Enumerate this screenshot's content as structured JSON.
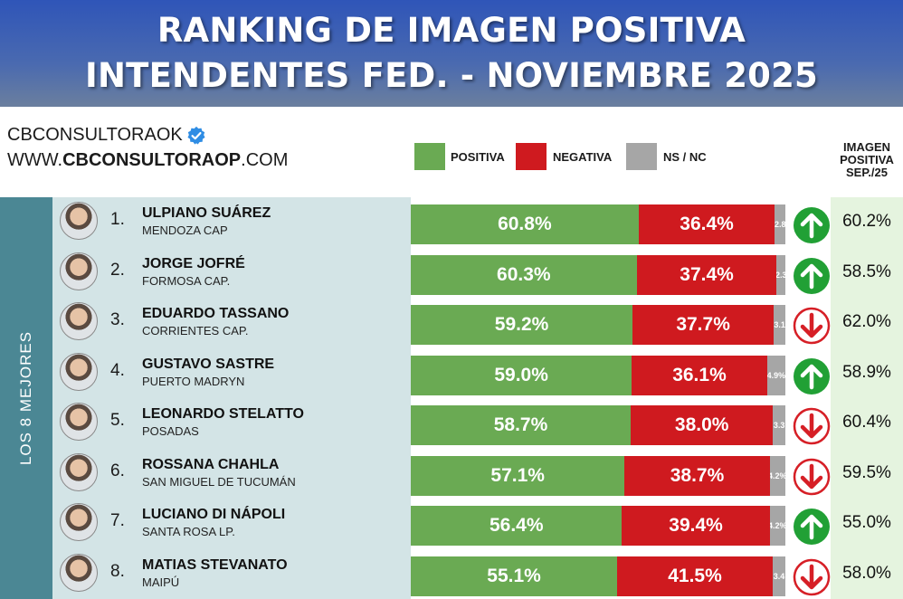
{
  "header": {
    "title_line1": "RANKING DE IMAGEN POSITIVA",
    "title_line2": "INTENDENTES FED. - NOVIEMBRE 2025"
  },
  "brand": {
    "handle": "CBCONSULTORAOK",
    "site_prefix": "WWW.",
    "site_bold": "CBCONSULTORAOP",
    "site_suffix": ".COM"
  },
  "legend": [
    {
      "label": "POSITIVA",
      "color": "#6aaa53"
    },
    {
      "label": "NEGATIVA",
      "color": "#cf1a1f"
    },
    {
      "label": "NS / NC",
      "color": "#a6a6a6"
    }
  ],
  "prev_header": [
    "IMAGEN",
    "POSITIVA",
    "SEP./25"
  ],
  "side_label": "LOS 8 MEJORES",
  "colors": {
    "up_arrow": "#21a035",
    "down_arrow": "#d61f26"
  },
  "chart_data": {
    "type": "bar",
    "stacked": true,
    "orientation": "horizontal",
    "title": "RANKING DE IMAGEN POSITIVA INTENDENTES FED. - NOVIEMBRE 2025",
    "categories": [
      "ULPIANO SUÁREZ",
      "JORGE JOFRÉ",
      "EDUARDO TASSANO",
      "GUSTAVO SASTRE",
      "LEONARDO STELATTO",
      "ROSSANA CHAHLA",
      "LUCIANO DI NÁPOLI",
      "MATIAS STEVANATO"
    ],
    "series": [
      {
        "name": "POSITIVA",
        "values": [
          60.8,
          60.3,
          59.2,
          59.0,
          58.7,
          57.1,
          56.4,
          55.1
        ]
      },
      {
        "name": "NEGATIVA",
        "values": [
          36.4,
          37.4,
          37.7,
          36.1,
          38.0,
          38.7,
          39.4,
          41.5
        ]
      },
      {
        "name": "NS / NC",
        "values": [
          2.8,
          2.3,
          3.1,
          4.9,
          3.3,
          4.2,
          4.2,
          3.4
        ]
      }
    ],
    "rows": [
      {
        "rank": "1.",
        "name": "ULPIANO SUÁREZ",
        "city": "MENDOZA CAP",
        "pos": "60.8%",
        "neg": "36.4%",
        "ns": "2.8",
        "trend": "up",
        "prev": "60.2%"
      },
      {
        "rank": "2.",
        "name": "JORGE JOFRÉ",
        "city": "FORMOSA CAP.",
        "pos": "60.3%",
        "neg": "37.4%",
        "ns": "2.3",
        "trend": "up",
        "prev": "58.5%"
      },
      {
        "rank": "3.",
        "name": "EDUARDO TASSANO",
        "city": "CORRIENTES CAP.",
        "pos": "59.2%",
        "neg": "37.7%",
        "ns": "3.1",
        "trend": "down",
        "prev": "62.0%"
      },
      {
        "rank": "4.",
        "name": "GUSTAVO SASTRE",
        "city": "PUERTO MADRYN",
        "pos": "59.0%",
        "neg": "36.1%",
        "ns": "4.9%",
        "trend": "up",
        "prev": "58.9%"
      },
      {
        "rank": "5.",
        "name": "LEONARDO STELATTO",
        "city": "POSADAS",
        "pos": "58.7%",
        "neg": "38.0%",
        "ns": "3.3",
        "trend": "down",
        "prev": "60.4%"
      },
      {
        "rank": "6.",
        "name": "ROSSANA CHAHLA",
        "city": "SAN MIGUEL DE TUCUMÁN",
        "pos": "57.1%",
        "neg": "38.7%",
        "ns": "4.2%",
        "trend": "down",
        "prev": "59.5%"
      },
      {
        "rank": "7.",
        "name": "LUCIANO DI NÁPOLI",
        "city": "SANTA ROSA LP.",
        "pos": "56.4%",
        "neg": "39.4%",
        "ns": "4.2%",
        "trend": "up",
        "prev": "55.0%"
      },
      {
        "rank": "8.",
        "name": "MATIAS STEVANATO",
        "city": "MAIPÚ",
        "pos": "55.1%",
        "neg": "41.5%",
        "ns": "3.4",
        "trend": "down",
        "prev": "58.0%"
      }
    ]
  }
}
